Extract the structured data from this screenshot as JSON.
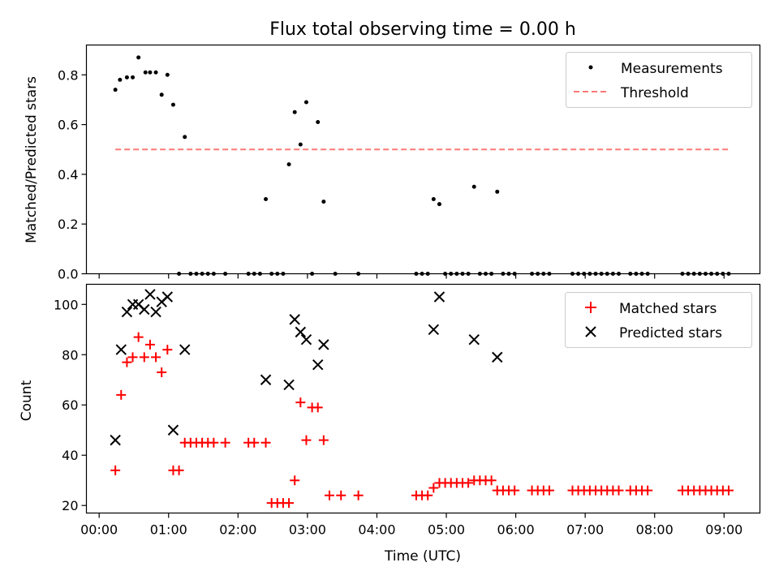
{
  "chart_data": {
    "title": "Flux total observing time = 0.00 h",
    "xlabel": "Time (UTC)",
    "x_ticks": [
      "00:00",
      "01:00",
      "02:00",
      "03:00",
      "04:00",
      "05:00",
      "06:00",
      "07:00",
      "08:00",
      "09:00"
    ],
    "xlim": [
      "23:49",
      "09:31"
    ],
    "panels": [
      {
        "type": "scatter",
        "ylabel": "Matched/Predicted stars",
        "ylim": [
          0,
          0.92
        ],
        "y_ticks": [
          "0.0",
          "0.2",
          "0.4",
          "0.6",
          "0.8"
        ],
        "legend_position": "upper-right",
        "series": [
          {
            "name": "Measurements",
            "marker": "dot",
            "color": "#000000",
            "points": [
              [
                "00:14",
                0.74
              ],
              [
                "00:18",
                0.78
              ],
              [
                "00:24",
                0.79
              ],
              [
                "00:29",
                0.79
              ],
              [
                "00:34",
                0.87
              ],
              [
                "00:40",
                0.81
              ],
              [
                "00:44",
                0.81
              ],
              [
                "00:49",
                0.81
              ],
              [
                "00:54",
                0.72
              ],
              [
                "00:59",
                0.8
              ],
              [
                "01:04",
                0.68
              ],
              [
                "01:14",
                0.55
              ],
              [
                "02:24",
                0.3
              ],
              [
                "02:44",
                0.44
              ],
              [
                "02:49",
                0.65
              ],
              [
                "02:54",
                0.52
              ],
              [
                "02:59",
                0.69
              ],
              [
                "03:09",
                0.61
              ],
              [
                "03:14",
                0.29
              ],
              [
                "04:49",
                0.3
              ],
              [
                "04:54",
                0.28
              ],
              [
                "05:24",
                0.35
              ],
              [
                "05:44",
                0.33
              ],
              [
                "01:09",
                0
              ],
              [
                "01:19",
                0
              ],
              [
                "01:24",
                0
              ],
              [
                "01:29",
                0
              ],
              [
                "01:34",
                0
              ],
              [
                "01:39",
                0
              ],
              [
                "01:49",
                0
              ],
              [
                "02:09",
                0
              ],
              [
                "02:14",
                0
              ],
              [
                "02:19",
                0
              ],
              [
                "02:29",
                0
              ],
              [
                "02:34",
                0
              ],
              [
                "02:39",
                0
              ],
              [
                "03:04",
                0
              ],
              [
                "03:24",
                0
              ],
              [
                "03:44",
                0
              ],
              [
                "04:34",
                0
              ],
              [
                "04:39",
                0
              ],
              [
                "04:44",
                0
              ],
              [
                "04:59",
                0
              ],
              [
                "05:04",
                0
              ],
              [
                "05:09",
                0
              ],
              [
                "05:14",
                0
              ],
              [
                "05:19",
                0
              ],
              [
                "05:29",
                0
              ],
              [
                "05:34",
                0
              ],
              [
                "05:39",
                0
              ],
              [
                "05:49",
                0
              ],
              [
                "05:54",
                0
              ],
              [
                "05:59",
                0
              ],
              [
                "06:14",
                0
              ],
              [
                "06:19",
                0
              ],
              [
                "06:24",
                0
              ],
              [
                "06:29",
                0
              ],
              [
                "06:49",
                0
              ],
              [
                "06:54",
                0
              ],
              [
                "06:59",
                0
              ],
              [
                "07:04",
                0
              ],
              [
                "07:09",
                0
              ],
              [
                "07:14",
                0
              ],
              [
                "07:19",
                0
              ],
              [
                "07:24",
                0
              ],
              [
                "07:29",
                0
              ],
              [
                "07:39",
                0
              ],
              [
                "07:44",
                0
              ],
              [
                "07:49",
                0
              ],
              [
                "07:54",
                0
              ],
              [
                "08:24",
                0
              ],
              [
                "08:29",
                0
              ],
              [
                "08:34",
                0
              ],
              [
                "08:39",
                0
              ],
              [
                "08:44",
                0
              ],
              [
                "08:49",
                0
              ],
              [
                "08:54",
                0
              ],
              [
                "08:59",
                0
              ],
              [
                "09:04",
                0
              ]
            ]
          },
          {
            "name": "Threshold",
            "type": "line",
            "style": "dashed",
            "color": "#ff7878",
            "points": [
              [
                "00:14",
                0.5
              ],
              [
                "09:04",
                0.5
              ]
            ]
          }
        ]
      },
      {
        "type": "scatter",
        "ylabel": "Count",
        "ylim": [
          17,
          108
        ],
        "y_ticks": [
          "20",
          "40",
          "60",
          "80",
          "100"
        ],
        "legend_position": "upper-right",
        "series": [
          {
            "name": "Matched stars",
            "marker": "plus",
            "color": "#ff0000",
            "points": [
              [
                "00:14",
                34
              ],
              [
                "00:19",
                64
              ],
              [
                "00:24",
                77
              ],
              [
                "00:29",
                79
              ],
              [
                "00:34",
                87
              ],
              [
                "00:39",
                79
              ],
              [
                "00:44",
                84
              ],
              [
                "00:49",
                79
              ],
              [
                "00:54",
                73
              ],
              [
                "00:59",
                82
              ],
              [
                "01:04",
                34
              ],
              [
                "01:09",
                34
              ],
              [
                "01:14",
                45
              ],
              [
                "01:19",
                45
              ],
              [
                "01:24",
                45
              ],
              [
                "01:29",
                45
              ],
              [
                "01:34",
                45
              ],
              [
                "01:39",
                45
              ],
              [
                "01:49",
                45
              ],
              [
                "02:09",
                45
              ],
              [
                "02:14",
                45
              ],
              [
                "02:24",
                45
              ],
              [
                "02:29",
                21
              ],
              [
                "02:34",
                21
              ],
              [
                "02:39",
                21
              ],
              [
                "02:44",
                21
              ],
              [
                "02:49",
                30
              ],
              [
                "02:54",
                61
              ],
              [
                "02:59",
                46
              ],
              [
                "03:04",
                59
              ],
              [
                "03:09",
                59
              ],
              [
                "03:14",
                46
              ],
              [
                "03:19",
                24
              ],
              [
                "03:29",
                24
              ],
              [
                "03:44",
                24
              ],
              [
                "04:34",
                24
              ],
              [
                "04:39",
                24
              ],
              [
                "04:44",
                24
              ],
              [
                "04:49",
                27
              ],
              [
                "04:54",
                29
              ],
              [
                "04:59",
                29
              ],
              [
                "05:04",
                29
              ],
              [
                "05:09",
                29
              ],
              [
                "05:14",
                29
              ],
              [
                "05:19",
                29
              ],
              [
                "05:24",
                30
              ],
              [
                "05:29",
                30
              ],
              [
                "05:34",
                30
              ],
              [
                "05:39",
                30
              ],
              [
                "05:44",
                26
              ],
              [
                "05:49",
                26
              ],
              [
                "05:54",
                26
              ],
              [
                "05:59",
                26
              ],
              [
                "06:14",
                26
              ],
              [
                "06:19",
                26
              ],
              [
                "06:24",
                26
              ],
              [
                "06:29",
                26
              ],
              [
                "06:49",
                26
              ],
              [
                "06:54",
                26
              ],
              [
                "06:59",
                26
              ],
              [
                "07:04",
                26
              ],
              [
                "07:09",
                26
              ],
              [
                "07:14",
                26
              ],
              [
                "07:19",
                26
              ],
              [
                "07:24",
                26
              ],
              [
                "07:29",
                26
              ],
              [
                "07:39",
                26
              ],
              [
                "07:44",
                26
              ],
              [
                "07:49",
                26
              ],
              [
                "07:54",
                26
              ],
              [
                "08:24",
                26
              ],
              [
                "08:29",
                26
              ],
              [
                "08:34",
                26
              ],
              [
                "08:39",
                26
              ],
              [
                "08:44",
                26
              ],
              [
                "08:49",
                26
              ],
              [
                "08:54",
                26
              ],
              [
                "08:59",
                26
              ],
              [
                "09:04",
                26
              ]
            ]
          },
          {
            "name": "Predicted stars",
            "marker": "x",
            "color": "#000000",
            "points": [
              [
                "00:14",
                46
              ],
              [
                "00:19",
                82
              ],
              [
                "00:24",
                97
              ],
              [
                "00:29",
                100
              ],
              [
                "00:34",
                100
              ],
              [
                "00:39",
                98
              ],
              [
                "00:44",
                104
              ],
              [
                "00:49",
                97
              ],
              [
                "00:54",
                101
              ],
              [
                "00:59",
                103
              ],
              [
                "01:04",
                50
              ],
              [
                "01:14",
                82
              ],
              [
                "02:24",
                70
              ],
              [
                "02:44",
                68
              ],
              [
                "02:49",
                94
              ],
              [
                "02:54",
                89
              ],
              [
                "02:59",
                86
              ],
              [
                "03:09",
                76
              ],
              [
                "03:14",
                84
              ],
              [
                "04:49",
                90
              ],
              [
                "04:54",
                103
              ],
              [
                "05:24",
                86
              ],
              [
                "05:44",
                79
              ]
            ]
          }
        ]
      }
    ]
  }
}
